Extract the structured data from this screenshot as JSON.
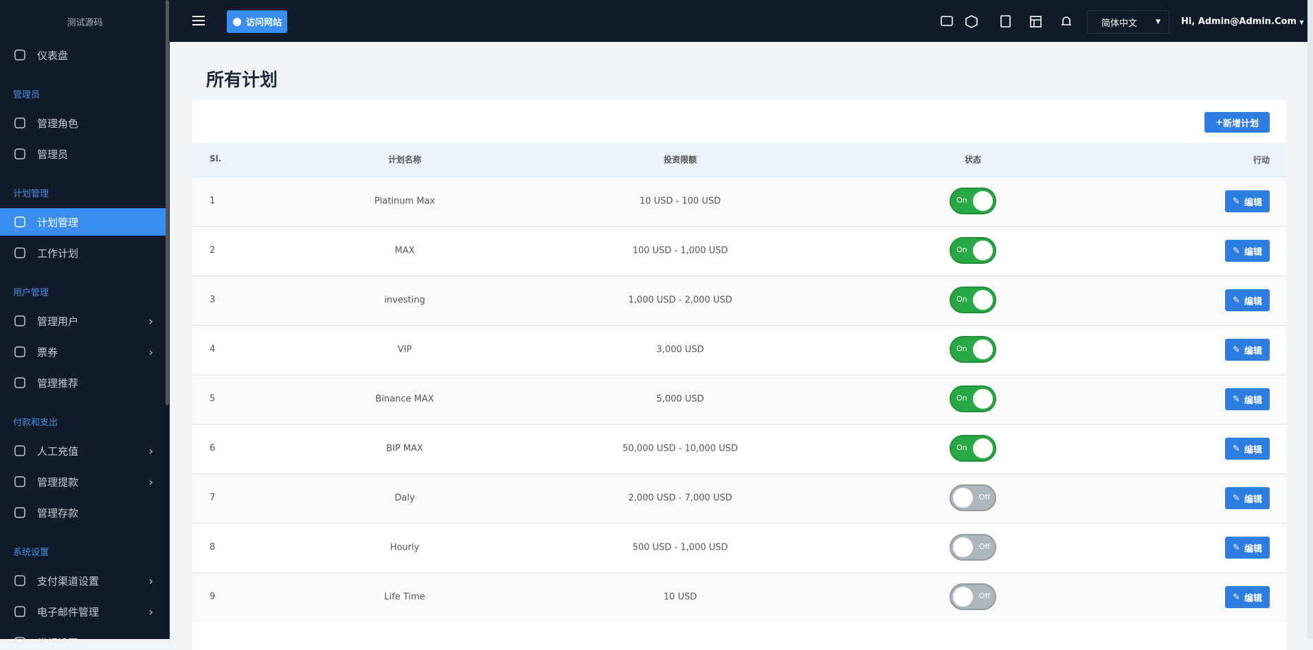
{
  "sidebar": {
    "brand": "测试源码",
    "sections": [
      {
        "items": [
          {
            "label": "仪表盘"
          }
        ]
      },
      {
        "title": "管理员",
        "items": [
          {
            "label": "管理角色"
          },
          {
            "label": "管理员"
          }
        ]
      },
      {
        "title": "计划管理",
        "items": [
          {
            "label": "计划管理",
            "active": true
          },
          {
            "label": "工作计划"
          }
        ]
      },
      {
        "title": "用户管理",
        "items": [
          {
            "label": "管理用户",
            "submenu": true
          },
          {
            "label": "票券",
            "submenu": true
          },
          {
            "label": "管理推荐"
          }
        ]
      },
      {
        "title": "付款和支出",
        "items": [
          {
            "label": "人工充值",
            "submenu": true
          },
          {
            "label": "管理提款",
            "submenu": true
          },
          {
            "label": "管理存款"
          }
        ]
      },
      {
        "title": "系统设置",
        "items": [
          {
            "label": "支付渠道设置",
            "submenu": true
          },
          {
            "label": "电子邮件管理",
            "submenu": true
          },
          {
            "label": "常规设置",
            "submenu": true
          }
        ]
      }
    ]
  },
  "header": {
    "visit_button": "访问网站",
    "language": "简体中文",
    "user": "Hi, Admin@Admin.Com"
  },
  "page": {
    "title": "所有计划",
    "add_button": "新增计划"
  },
  "table": {
    "columns": [
      "Sl.",
      "计划名称",
      "投资限额",
      "状态",
      "行动"
    ],
    "edit_label": "编辑",
    "rows": [
      [
        "1",
        "Platinum Max",
        "10 USD - 100 USD",
        "On"
      ],
      [
        "2",
        "MAX",
        "100 USD - 1,000 USD",
        "On"
      ],
      [
        "3",
        "investing",
        "1,000 USD - 2,000 USD",
        "On"
      ],
      [
        "4",
        "VIP",
        "3,000 USD",
        "On"
      ],
      [
        "5",
        "Binance MAX",
        "5,000 USD",
        "On"
      ],
      [
        "6",
        "BIP MAX",
        "50,000 USD - 10,000 USD",
        "On"
      ],
      [
        "7",
        "Daly",
        "2,000 USD - 7,000 USD",
        "Off"
      ],
      [
        "8",
        "Hourly",
        "500 USD - 1,000 USD",
        "Off"
      ],
      [
        "9",
        "Life Time",
        "10 USD",
        "Off"
      ]
    ]
  }
}
